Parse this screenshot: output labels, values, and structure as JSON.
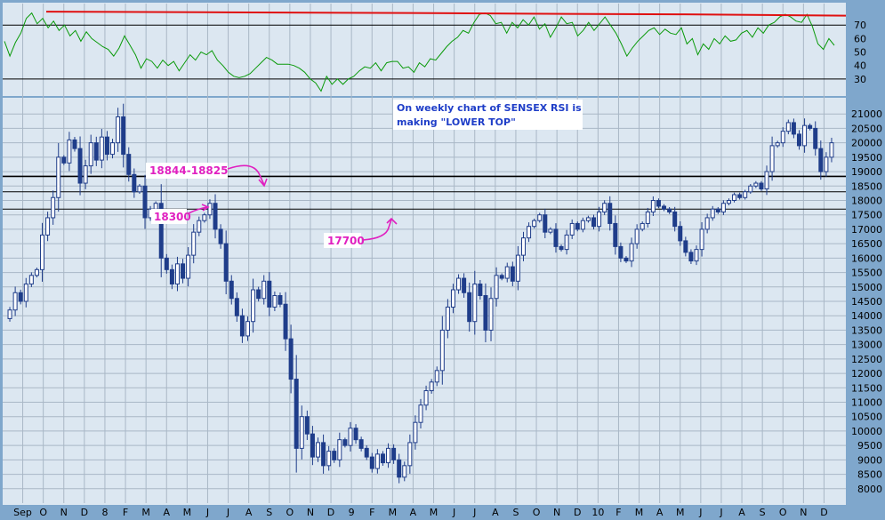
{
  "chart_data": [
    {
      "type": "line",
      "title": "",
      "series": [
        {
          "values": [
            58,
            47,
            57,
            64,
            75,
            79,
            71,
            75,
            68,
            73,
            66,
            70,
            62,
            66,
            58,
            65,
            60,
            57,
            54,
            52,
            47,
            53,
            62,
            55,
            48,
            38,
            45,
            43,
            38,
            44,
            40,
            43,
            36,
            42,
            48,
            44,
            50,
            48,
            51,
            44,
            40,
            35,
            32,
            31,
            32,
            34,
            38,
            42,
            46,
            44,
            41,
            41,
            41,
            40,
            38,
            35,
            30,
            27,
            21,
            32,
            26,
            30,
            26,
            30,
            32,
            36,
            39,
            38,
            42,
            36,
            42,
            43,
            43,
            38,
            39,
            35,
            42,
            39,
            45,
            44,
            49,
            54,
            58,
            61,
            66,
            64,
            72,
            78,
            79,
            77,
            71,
            72,
            64,
            72,
            68,
            74,
            70,
            76,
            67,
            71,
            61,
            68,
            76,
            71,
            72,
            62,
            66,
            72,
            66,
            71,
            76,
            70,
            64,
            56,
            47,
            53,
            58,
            62,
            66,
            68,
            63,
            67,
            64,
            63,
            68,
            56,
            60,
            48,
            56,
            52,
            60,
            56,
            62,
            58,
            59,
            64,
            66,
            61,
            68,
            64,
            70,
            72,
            76,
            78,
            76,
            73,
            72,
            78,
            69,
            56,
            52,
            60,
            55
          ]
        }
      ],
      "yticks": [
        30,
        40,
        50,
        60,
        70
      ],
      "hlines": [
        30,
        70,
        80
      ],
      "ylim": [
        18,
        86
      ]
    },
    {
      "type": "candlestick",
      "ylim": [
        7500,
        21500
      ],
      "yticks": [
        8000,
        8500,
        9000,
        9500,
        10000,
        10500,
        11000,
        11500,
        12000,
        12500,
        13000,
        13500,
        14000,
        14500,
        15000,
        15500,
        16000,
        16500,
        17000,
        17500,
        18000,
        18500,
        19000,
        19500,
        20000,
        20500,
        21000
      ],
      "ytick_labels": [
        "8000",
        "8500",
        "9000",
        "9500",
        "10000",
        "10500",
        "11000",
        "11500",
        "12000",
        "12500",
        "13000",
        "13500",
        "14000",
        "14500",
        "15000",
        "15500",
        "16000",
        "16500",
        "17000",
        "17500",
        "18000",
        "18500",
        "19000",
        "19500",
        "20000",
        "20500",
        "21000"
      ],
      "hlines": [
        18844,
        18825,
        18300,
        17700
      ],
      "closes": [
        14200,
        14800,
        14500,
        15100,
        15400,
        15600,
        16800,
        17400,
        18100,
        19500,
        19300,
        20100,
        19800,
        18600,
        19200,
        20000,
        19400,
        20200,
        19600,
        20000,
        20900,
        19600,
        18900,
        18300,
        18500,
        17400,
        17700,
        17900,
        16000,
        15600,
        15100,
        15800,
        15300,
        16100,
        16900,
        17300,
        17500,
        17900,
        17000,
        16500,
        15200,
        14600,
        14000,
        13300,
        13800,
        14900,
        14600,
        15200,
        14300,
        14700,
        14400,
        13200,
        11800,
        9400,
        10500,
        9900,
        9100,
        9600,
        8800,
        9300,
        9000,
        9700,
        9500,
        10100,
        9700,
        9400,
        9100,
        8700,
        9200,
        8900,
        9400,
        9000,
        8400,
        8800,
        9600,
        10300,
        10900,
        11400,
        11700,
        12100,
        13500,
        14300,
        14900,
        15300,
        14800,
        13800,
        15100,
        14700,
        13500,
        14600,
        15400,
        15300,
        15700,
        15200,
        16100,
        16700,
        17100,
        17300,
        17500,
        16900,
        17000,
        16400,
        16300,
        16800,
        17200,
        17000,
        17300,
        17400,
        17100,
        17600,
        17900,
        17200,
        16400,
        16000,
        15900,
        16500,
        17000,
        17200,
        17600,
        18000,
        17800,
        17700,
        17600,
        17100,
        16600,
        16200,
        15900,
        16300,
        17000,
        17400,
        17700,
        17600,
        17900,
        18000,
        18200,
        18100,
        18300,
        18500,
        18600,
        18400,
        19000,
        19900,
        20000,
        20400,
        20700,
        20300,
        19900,
        20600,
        20500,
        19800,
        19000,
        19500,
        20000
      ]
    }
  ],
  "x_axis": {
    "labels": [
      "Sep",
      "O",
      "N",
      "D",
      "8",
      "F",
      "M",
      "A",
      "M",
      "J",
      "J",
      "A",
      "S",
      "O",
      "N",
      "D",
      "9",
      "F",
      "M",
      "A",
      "M",
      "J",
      "J",
      "A",
      "S",
      "O",
      "N",
      "D",
      "10",
      "F",
      "M",
      "A",
      "M",
      "J",
      "J",
      "A",
      "S",
      "O",
      "N",
      "D"
    ]
  },
  "annotations": {
    "a1": "18844-18825",
    "a2": "18300",
    "a3": "17700",
    "note_line1": "On weekly chart of SENSEX RSI is",
    "note_line2": "making \"LOWER TOP\""
  },
  "colors": {
    "panel_bg": "#dce7f1",
    "outer_bg": "#7fa7cc",
    "grid": "#a9b7c6",
    "rsi_line": "#0a9a0a",
    "trend_line": "#e01010",
    "candle": "#1f3d8a",
    "annotation": "#e020c0",
    "note": "#1f3ec8"
  }
}
